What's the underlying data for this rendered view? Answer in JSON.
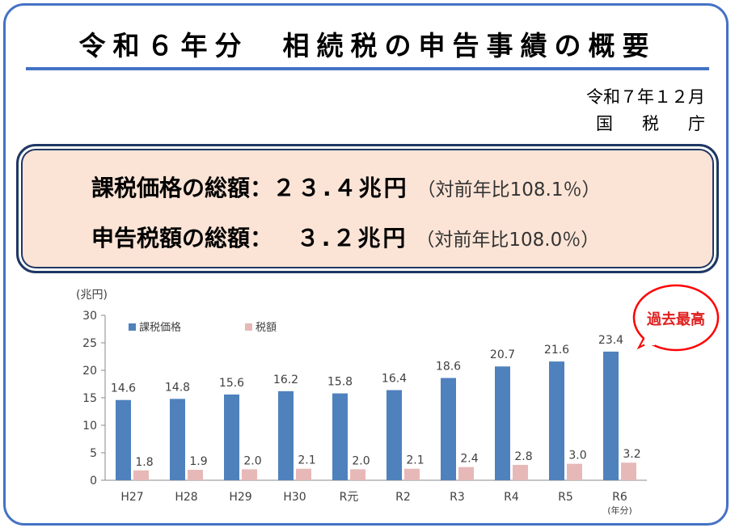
{
  "header": {
    "title": "令和６年分　相続税の申告事績の概要",
    "date": "令和７年１２月",
    "agency": "国税庁"
  },
  "summary": {
    "rows": [
      {
        "label": "課税価格の総額：",
        "value": "２３.４兆円",
        "ratio": "（対前年比108.1％）"
      },
      {
        "label": "申告税額の総額：",
        "value": "　 ３.２兆円",
        "ratio": "（対前年比108.0％）"
      }
    ]
  },
  "chart_data": {
    "type": "bar",
    "unit_label": "(兆円)",
    "x_unit_label": "(年分)",
    "categories": [
      "H27",
      "H28",
      "H29",
      "H30",
      "R元",
      "R2",
      "R3",
      "R4",
      "R5",
      "R6"
    ],
    "ylim": [
      0,
      30
    ],
    "yticks": [
      0,
      5,
      10,
      15,
      20,
      25,
      30
    ],
    "grid": false,
    "legend": "top-left",
    "series": [
      {
        "name": "課税価格",
        "color": "#4f81bd",
        "values": [
          14.6,
          14.8,
          15.6,
          16.2,
          15.8,
          16.4,
          18.6,
          20.7,
          21.6,
          23.4
        ],
        "labels": [
          "14.6",
          "14.8",
          "15.6",
          "16.2",
          "15.8",
          "16.4",
          "18.6",
          "20.7",
          "21.6",
          "23.4"
        ]
      },
      {
        "name": "税額",
        "color": "#e6b9b8",
        "values": [
          1.8,
          1.9,
          2.0,
          2.1,
          2.0,
          2.1,
          2.4,
          2.8,
          3.0,
          3.2
        ],
        "labels": [
          "1.8",
          "1.9",
          "2.0",
          "2.1",
          "2.0",
          "2.1",
          "2.4",
          "2.8",
          "3.0",
          "3.2"
        ]
      }
    ],
    "callout": {
      "text": "過去最高",
      "text_color": "#e02020",
      "border_color": "#ff0000"
    }
  }
}
